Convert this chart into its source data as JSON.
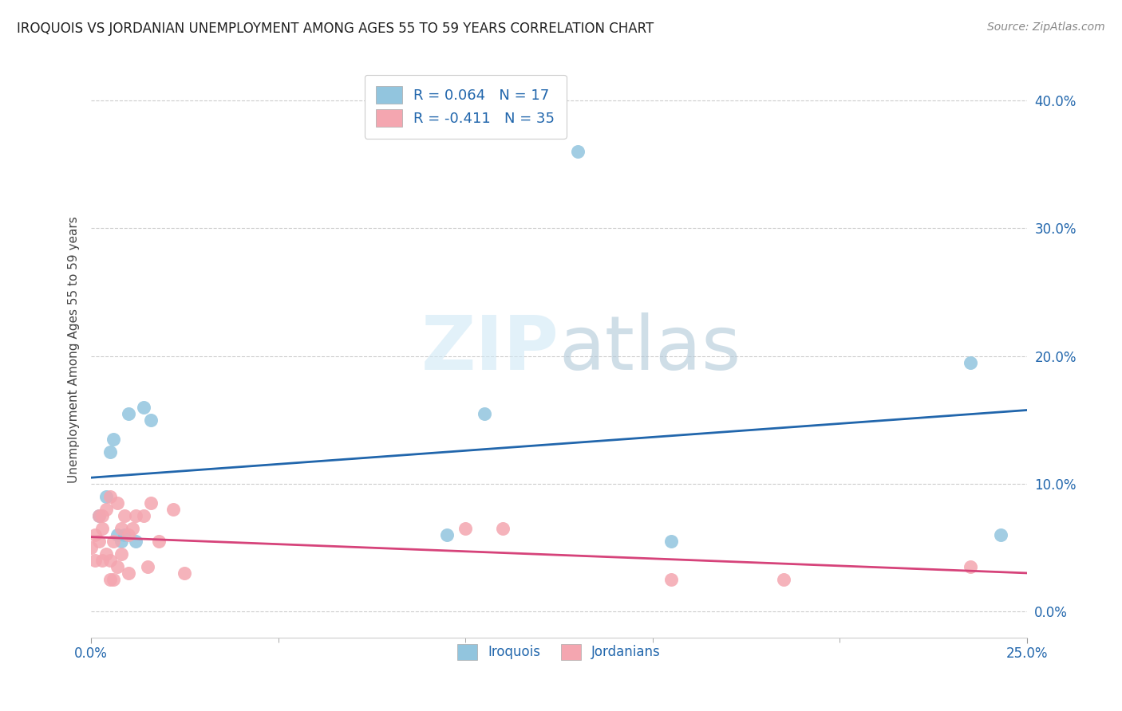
{
  "title": "IROQUOIS VS JORDANIAN UNEMPLOYMENT AMONG AGES 55 TO 59 YEARS CORRELATION CHART",
  "source": "Source: ZipAtlas.com",
  "xlabel": "",
  "ylabel": "Unemployment Among Ages 55 to 59 years",
  "xlim": [
    0.0,
    0.25
  ],
  "ylim": [
    -0.02,
    0.43
  ],
  "xticks_labeled": [
    0.0,
    0.25
  ],
  "xticks_minor": [
    0.05,
    0.1,
    0.15,
    0.2
  ],
  "yticks": [
    0.0,
    0.1,
    0.2,
    0.3,
    0.4
  ],
  "background_color": "#ffffff",
  "iroquois_color": "#92c5de",
  "jordanian_color": "#f4a6b0",
  "iroquois_line_color": "#2166ac",
  "jordanian_line_color": "#d6437a",
  "iroquois_R": 0.064,
  "iroquois_N": 17,
  "jordanian_R": -0.411,
  "jordanian_N": 35,
  "iroquois_x": [
    0.002,
    0.004,
    0.005,
    0.006,
    0.007,
    0.008,
    0.009,
    0.01,
    0.012,
    0.014,
    0.016,
    0.095,
    0.105,
    0.13,
    0.155,
    0.235,
    0.243
  ],
  "iroquois_y": [
    0.075,
    0.09,
    0.125,
    0.135,
    0.06,
    0.055,
    0.06,
    0.155,
    0.055,
    0.16,
    0.15,
    0.06,
    0.155,
    0.36,
    0.055,
    0.195,
    0.06
  ],
  "jordanian_x": [
    0.0,
    0.001,
    0.001,
    0.002,
    0.002,
    0.003,
    0.003,
    0.003,
    0.004,
    0.004,
    0.005,
    0.005,
    0.005,
    0.006,
    0.006,
    0.007,
    0.007,
    0.008,
    0.008,
    0.009,
    0.01,
    0.01,
    0.011,
    0.012,
    0.014,
    0.015,
    0.016,
    0.018,
    0.022,
    0.025,
    0.1,
    0.11,
    0.155,
    0.185,
    0.235
  ],
  "jordanian_y": [
    0.05,
    0.04,
    0.06,
    0.055,
    0.075,
    0.04,
    0.065,
    0.075,
    0.045,
    0.08,
    0.025,
    0.04,
    0.09,
    0.025,
    0.055,
    0.035,
    0.085,
    0.045,
    0.065,
    0.075,
    0.03,
    0.06,
    0.065,
    0.075,
    0.075,
    0.035,
    0.085,
    0.055,
    0.08,
    0.03,
    0.065,
    0.065,
    0.025,
    0.025,
    0.035
  ],
  "watermark_zip": "ZIP",
  "watermark_atlas": "atlas",
  "legend_iroquois_label": "Iroquois",
  "legend_jordanian_label": "Jordanians",
  "title_fontsize": 12,
  "label_fontsize": 11,
  "tick_fontsize": 12,
  "source_fontsize": 10,
  "legend_fontsize": 13
}
